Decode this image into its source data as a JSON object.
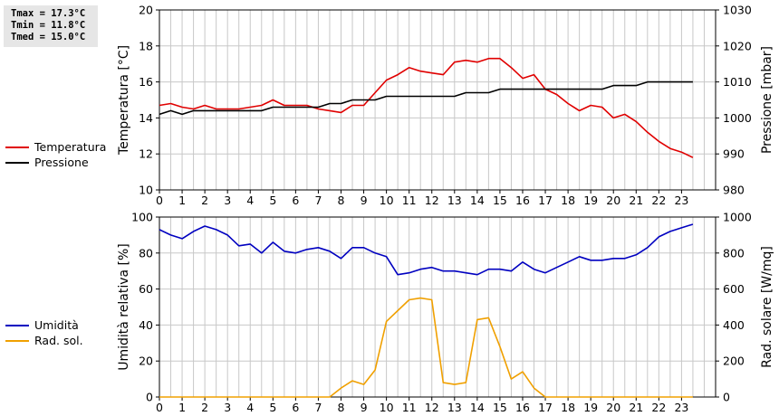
{
  "stats": {
    "tmax": "Tmax = 17.3°C",
    "tmin": "Tmin = 11.8°C",
    "tmed": "Tmed = 15.0°C"
  },
  "colors": {
    "temperatura": "#e00000",
    "pressione": "#000000",
    "umidita": "#0000c0",
    "radsol": "#f0a000",
    "grid": "#c8c8c8"
  },
  "chart_data": [
    {
      "type": "line",
      "x_ticks": [
        "0",
        "1",
        "2",
        "3",
        "4",
        "5",
        "6",
        "7",
        "8",
        "9",
        "10",
        "11",
        "12",
        "13",
        "14",
        "15",
        "16",
        "17",
        "18",
        "19",
        "20",
        "21",
        "22",
        "23"
      ],
      "xlim": [
        0,
        24.5
      ],
      "ylabel": "Temperatura [°C]",
      "ylim": [
        10,
        20
      ],
      "y_ticks": [
        "10",
        "12",
        "14",
        "16",
        "18",
        "20"
      ],
      "y2label": "Pressione [mbar]",
      "y2lim": [
        980,
        1030
      ],
      "y2_ticks": [
        "980",
        "990",
        "1000",
        "1010",
        "1020",
        "1030"
      ],
      "legend": [
        "Temperatura",
        "Pressione"
      ],
      "series": [
        {
          "name": "Temperatura",
          "axis": "left",
          "x": [
            0,
            0.5,
            1,
            1.5,
            2,
            2.5,
            3,
            3.5,
            4,
            4.5,
            5,
            5.5,
            6,
            6.5,
            7,
            7.5,
            8,
            8.5,
            9,
            9.5,
            10,
            10.5,
            11,
            11.5,
            12,
            12.5,
            13,
            13.5,
            14,
            14.5,
            15,
            15.5,
            16,
            16.5,
            17,
            17.5,
            18,
            18.5,
            19,
            19.5,
            20,
            20.5,
            21,
            21.5,
            22,
            22.5,
            23,
            23.5
          ],
          "y": [
            14.7,
            14.8,
            14.6,
            14.5,
            14.7,
            14.5,
            14.5,
            14.5,
            14.6,
            14.7,
            15.0,
            14.7,
            14.7,
            14.7,
            14.5,
            14.4,
            14.3,
            14.7,
            14.7,
            15.4,
            16.1,
            16.4,
            16.8,
            16.6,
            16.5,
            16.4,
            17.1,
            17.2,
            17.1,
            17.3,
            17.3,
            16.8,
            16.2,
            16.4,
            15.6,
            15.3,
            14.8,
            14.4,
            14.7,
            14.6,
            14.0,
            14.2,
            13.8,
            13.2,
            12.7,
            12.3,
            12.1,
            11.8
          ]
        },
        {
          "name": "Pressione",
          "axis": "right",
          "x": [
            0,
            0.5,
            1,
            1.5,
            2,
            2.5,
            3,
            3.5,
            4,
            4.5,
            5,
            5.5,
            6,
            6.5,
            7,
            7.5,
            8,
            8.5,
            9,
            9.5,
            10,
            10.5,
            11,
            11.5,
            12,
            12.5,
            13,
            13.5,
            14,
            14.5,
            15,
            15.5,
            16,
            16.5,
            17,
            17.5,
            18,
            18.5,
            19,
            19.5,
            20,
            20.5,
            21,
            21.5,
            22,
            22.5,
            23,
            23.5
          ],
          "y": [
            1001,
            1002,
            1001,
            1002,
            1002,
            1002,
            1002,
            1002,
            1002,
            1002,
            1003,
            1003,
            1003,
            1003,
            1003,
            1004,
            1004,
            1005,
            1005,
            1005,
            1006,
            1006,
            1006,
            1006,
            1006,
            1006,
            1006,
            1007,
            1007,
            1007,
            1008,
            1008,
            1008,
            1008,
            1008,
            1008,
            1008,
            1008,
            1008,
            1008,
            1009,
            1009,
            1009,
            1010,
            1010,
            1010,
            1010,
            1010
          ]
        }
      ]
    },
    {
      "type": "line",
      "x_ticks": [
        "0",
        "1",
        "2",
        "3",
        "4",
        "5",
        "6",
        "7",
        "8",
        "9",
        "10",
        "11",
        "12",
        "13",
        "14",
        "15",
        "16",
        "17",
        "18",
        "19",
        "20",
        "21",
        "22",
        "23"
      ],
      "xlim": [
        0,
        24.5
      ],
      "ylabel": "Umidità relativa [%]",
      "ylim": [
        0,
        100
      ],
      "y_ticks": [
        "0",
        "20",
        "40",
        "60",
        "80",
        "100"
      ],
      "y2label": "Rad. solare [W/mq]",
      "y2lim": [
        0,
        1000
      ],
      "y2_ticks": [
        "0",
        "200",
        "400",
        "600",
        "800",
        "1000"
      ],
      "legend": [
        "Umidità",
        "Rad. sol."
      ],
      "series": [
        {
          "name": "Umidità",
          "axis": "left",
          "x": [
            0,
            0.5,
            1,
            1.5,
            2,
            2.5,
            3,
            3.5,
            4,
            4.5,
            5,
            5.5,
            6,
            6.5,
            7,
            7.5,
            8,
            8.5,
            9,
            9.5,
            10,
            10.5,
            11,
            11.5,
            12,
            12.5,
            13,
            13.5,
            14,
            14.5,
            15,
            15.5,
            16,
            16.5,
            17,
            17.5,
            18,
            18.5,
            19,
            19.5,
            20,
            20.5,
            21,
            21.5,
            22,
            22.5,
            23,
            23.5
          ],
          "y": [
            93,
            90,
            88,
            92,
            95,
            93,
            90,
            84,
            85,
            80,
            86,
            81,
            80,
            82,
            83,
            81,
            77,
            83,
            83,
            80,
            78,
            68,
            69,
            71,
            72,
            70,
            70,
            69,
            68,
            71,
            71,
            70,
            75,
            71,
            69,
            72,
            75,
            78,
            76,
            76,
            77,
            77,
            79,
            83,
            89,
            92,
            94,
            96
          ]
        },
        {
          "name": "Rad. sol.",
          "axis": "right",
          "x": [
            0,
            0.5,
            1,
            1.5,
            2,
            2.5,
            3,
            3.5,
            4,
            4.5,
            5,
            5.5,
            6,
            6.5,
            7,
            7.5,
            8,
            8.5,
            9,
            9.5,
            10,
            10.5,
            11,
            11.5,
            12,
            12.5,
            13,
            13.5,
            14,
            14.5,
            15,
            15.5,
            16,
            16.5,
            17,
            17.5,
            18,
            18.5,
            19,
            19.5,
            20,
            20.5,
            21,
            21.5,
            22,
            22.5,
            23,
            23.5
          ],
          "y": [
            0,
            0,
            0,
            0,
            0,
            0,
            0,
            0,
            0,
            0,
            0,
            0,
            0,
            0,
            0,
            0,
            50,
            90,
            70,
            150,
            420,
            480,
            540,
            550,
            540,
            80,
            70,
            80,
            430,
            440,
            280,
            100,
            140,
            50,
            0,
            0,
            0,
            0,
            0,
            0,
            0,
            0,
            0,
            0,
            0,
            0,
            0,
            0
          ]
        }
      ]
    }
  ]
}
